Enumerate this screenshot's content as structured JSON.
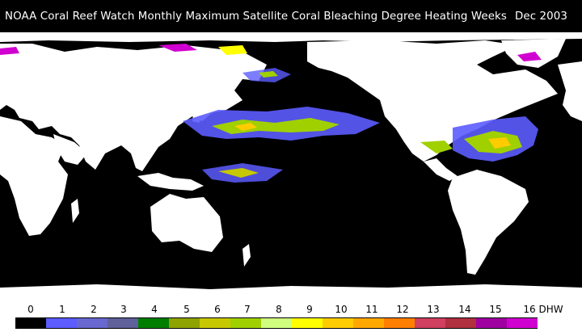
{
  "title": {
    "main": "NOAA  Coral  Reef  Watch  Monthly  Maximum  Satellite  Coral  Bleaching  Degree  Heating  Weeks",
    "date": "Dec 2003"
  },
  "colors": {
    "ocean": "#000000",
    "land": "#ffffff"
  },
  "legend": {
    "unit": "DHW",
    "ticks": [
      "0",
      "1",
      "2",
      "3",
      "4",
      "5",
      "6",
      "7",
      "8",
      "9",
      "10",
      "11",
      "12",
      "13",
      "14",
      "15",
      "16 DHW"
    ],
    "swatches": [
      "#000000",
      "#5c5cff",
      "#6868d0",
      "#60609a",
      "#007e00",
      "#8fa300",
      "#c8c800",
      "#a0d000",
      "#d0ff80",
      "#ffff00",
      "#ffcc00",
      "#ffa800",
      "#ff8000",
      "#d04060",
      "#b03040",
      "#a000a0",
      "#d000d0"
    ]
  }
}
